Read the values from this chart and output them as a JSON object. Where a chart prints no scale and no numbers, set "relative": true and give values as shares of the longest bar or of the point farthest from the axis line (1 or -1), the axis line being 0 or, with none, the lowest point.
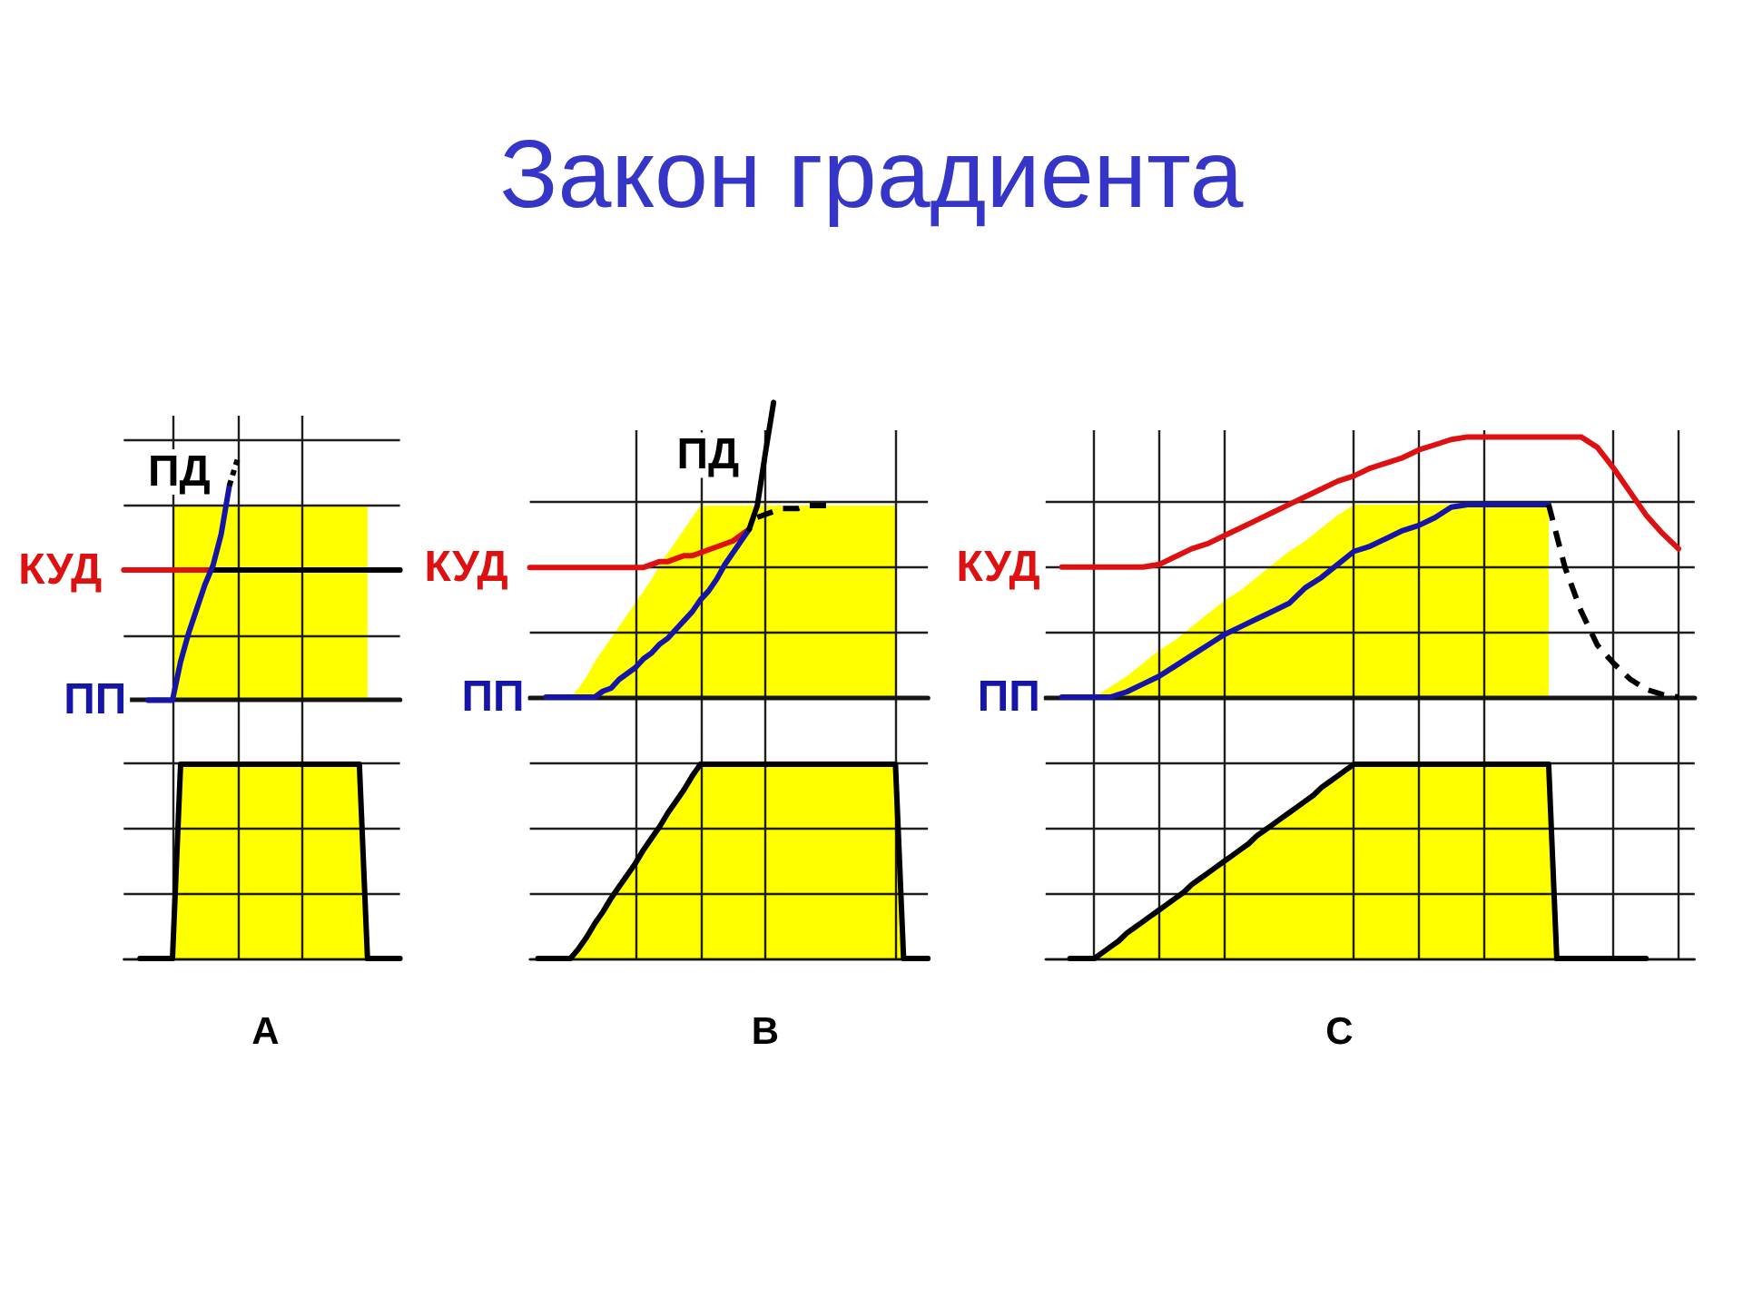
{
  "chart_data": [
    {
      "type": "line",
      "relative": true,
      "grid": true,
      "tick_labels": false,
      "categories": [
        null,
        null,
        null,
        null,
        null,
        null,
        null,
        null,
        null,
        null,
        null,
        null,
        null,
        null,
        null,
        null,
        null,
        null,
        null,
        null,
        null,
        null,
        null,
        null,
        null,
        null,
        null,
        null,
        null,
        null,
        null,
        null,
        null,
        null,
        null
      ],
      "series": [
        {
          "type": "area",
          "color": "#ffff00",
          "values": [
            null,
            null,
            null,
            null,
            null,
            null,
            0.81,
            0.81,
            0.81,
            0.81,
            0.81,
            0.81,
            0.81,
            0.81,
            0.81,
            0.81,
            0.81,
            0.81,
            0.81,
            0.81,
            0.81,
            0.81,
            0.81,
            0.81,
            0.81,
            0.81,
            0.81,
            0.81,
            0.81,
            0.81,
            0.81,
            null,
            null,
            null,
            null
          ]
        },
        {
          "type": "line",
          "name": "КУД",
          "color": "#dd1111",
          "values": [
            0.54,
            0.54,
            0.54,
            0.54,
            0.54,
            0.54,
            0.54,
            0.54,
            0.54,
            0.54,
            0.54,
            0.54,
            null,
            null,
            null,
            null,
            null,
            null,
            null,
            null,
            null,
            null,
            null,
            null,
            null,
            null,
            null,
            null,
            null,
            null,
            null,
            null,
            null,
            null,
            null
          ]
        },
        {
          "type": "line",
          "color": "#000000",
          "values": [
            null,
            null,
            null,
            null,
            null,
            null,
            null,
            null,
            null,
            null,
            null,
            0.54,
            0.54,
            0.54,
            0.54,
            0.54,
            0.54,
            0.54,
            0.54,
            0.54,
            0.54,
            0.54,
            0.54,
            0.54,
            0.54,
            0.54,
            0.54,
            0.54,
            0.54,
            0.54,
            0.54,
            0.54,
            0.54,
            0.54,
            0.54
          ]
        },
        {
          "type": "line",
          "name": "ПП",
          "color": "#1515a8",
          "values": [
            null,
            null,
            null,
            0,
            0,
            0,
            0,
            0.16,
            0.28,
            0.38,
            0.48,
            0.56,
            0.69,
            0.89,
            null,
            null,
            null,
            null,
            null,
            null,
            null,
            null,
            null,
            null,
            null,
            null,
            null,
            null,
            null,
            null,
            null,
            null,
            null,
            null,
            null
          ]
        },
        {
          "type": "line",
          "name": "ПД",
          "color": "#000000",
          "line_style": "dotted",
          "values": [
            null,
            null,
            null,
            null,
            null,
            null,
            null,
            null,
            null,
            null,
            null,
            null,
            null,
            0.89,
            1,
            null,
            null,
            null,
            null,
            null,
            null,
            null,
            null,
            null,
            null,
            null,
            null,
            null,
            null,
            null,
            null,
            null,
            null,
            null,
            null
          ]
        }
      ]
    },
    {
      "type": "line",
      "title": "Закон градиента",
      "relative": true,
      "grid": true,
      "tick_labels": false,
      "categories": [
        null,
        null,
        null,
        null,
        null,
        null,
        null,
        null,
        null,
        null,
        null,
        null,
        null,
        null,
        null,
        null,
        null,
        null,
        null,
        null,
        null,
        null,
        null,
        null,
        null,
        null,
        null,
        null,
        null,
        null,
        null,
        null,
        null,
        null,
        null,
        null,
        null,
        null,
        null,
        null,
        null,
        null,
        null,
        null,
        null,
        null,
        null,
        null,
        null,
        null
      ],
      "series": [
        {
          "type": "area",
          "color": "#ffff00",
          "values": [
            null,
            null,
            null,
            null,
            null,
            0,
            0.03,
            0.07,
            0.12,
            0.16,
            0.2,
            0.24,
            0.28,
            0.32,
            0.36,
            0.4,
            0.45,
            0.49,
            0.53,
            0.57,
            0.61,
            0.65,
            0.65,
            0.65,
            0.65,
            0.65,
            0.65,
            0.65,
            0.65,
            0.65,
            0.65,
            0.65,
            0.65,
            0.65,
            0.65,
            0.65,
            0.65,
            0.65,
            0.65,
            0.65,
            0.65,
            0.65,
            0.65,
            0.65,
            0.65,
            0.65,
            null,
            null,
            null,
            null
          ]
        },
        {
          "type": "line",
          "name": "КУД",
          "color": "#dd1111",
          "values": [
            0.44,
            0.44,
            0.44,
            0.44,
            0.44,
            0.44,
            0.44,
            0.44,
            0.44,
            0.44,
            0.44,
            0.44,
            0.44,
            0.44,
            0.44,
            0.45,
            0.46,
            0.46,
            0.47,
            0.48,
            0.48,
            0.49,
            0.5,
            0.51,
            0.52,
            0.53,
            0.55,
            0.57,
            null,
            null,
            null,
            null,
            null,
            null,
            null,
            null,
            null,
            null,
            null,
            null,
            null,
            null,
            null,
            null,
            null,
            null,
            null,
            null,
            null,
            null
          ]
        },
        {
          "type": "line",
          "name": "ПП",
          "color": "#1515a8",
          "values": [
            null,
            null,
            0,
            0,
            0,
            0,
            0,
            0,
            0,
            0.02,
            0.03,
            0.06,
            0.08,
            0.1,
            0.13,
            0.15,
            0.18,
            0.2,
            0.23,
            0.26,
            0.29,
            0.33,
            0.36,
            0.4,
            0.45,
            0.49,
            0.53,
            0.57,
            null,
            null,
            null,
            null,
            null,
            null,
            null,
            null,
            null,
            null,
            null,
            null,
            null,
            null,
            null,
            null,
            null,
            null,
            null,
            null,
            null,
            null
          ]
        },
        {
          "type": "line",
          "name": "ПД",
          "color": "#000000",
          "values": [
            null,
            null,
            null,
            null,
            null,
            null,
            null,
            null,
            null,
            null,
            null,
            null,
            null,
            null,
            null,
            null,
            null,
            null,
            null,
            null,
            null,
            null,
            null,
            null,
            null,
            null,
            null,
            0.57,
            0.65,
            0.83,
            1,
            null,
            null,
            null,
            null,
            null,
            null,
            null,
            null,
            null,
            null,
            null,
            null,
            null,
            null,
            null,
            null,
            null,
            null,
            null
          ]
        },
        {
          "type": "line",
          "color": "#000000",
          "line_style": "dashed",
          "values": [
            null,
            null,
            null,
            null,
            null,
            null,
            null,
            null,
            null,
            null,
            null,
            null,
            null,
            null,
            null,
            null,
            null,
            null,
            null,
            null,
            null,
            null,
            null,
            null,
            null,
            null,
            null,
            null,
            0.61,
            0.62,
            0.63,
            0.64,
            0.64,
            0.64,
            0.65,
            0.65,
            0.65,
            0.65,
            null,
            null,
            null,
            null,
            null,
            null,
            null,
            null,
            null,
            null,
            null,
            null
          ]
        }
      ]
    },
    {
      "type": "line",
      "relative": true,
      "grid": true,
      "tick_labels": false,
      "categories": [
        null,
        null,
        null,
        null,
        null,
        null,
        null,
        null,
        null,
        null,
        null,
        null,
        null,
        null,
        null,
        null,
        null,
        null,
        null,
        null,
        null,
        null,
        null,
        null,
        null,
        null,
        null,
        null,
        null,
        null,
        null,
        null,
        null,
        null,
        null,
        null,
        null,
        null,
        null,
        null,
        null
      ],
      "series": [
        {
          "type": "area",
          "color": "#ffff00",
          "values": [
            null,
            null,
            null,
            0,
            0.04,
            0.08,
            0.13,
            0.18,
            0.22,
            0.27,
            0.32,
            0.37,
            0.41,
            0.46,
            0.51,
            0.56,
            0.6,
            0.65,
            0.7,
            0.74,
            0.74,
            0.74,
            0.74,
            0.74,
            0.74,
            0.74,
            0.74,
            0.74,
            0.74,
            0.74,
            0.74,
            0.74,
            null,
            null,
            null,
            null,
            null,
            null,
            null,
            null,
            null
          ]
        },
        {
          "type": "line",
          "name": "КУД",
          "color": "#dd1111",
          "values": [
            null,
            0.5,
            0.5,
            0.5,
            0.5,
            0.5,
            0.5,
            0.51,
            0.54,
            0.57,
            0.59,
            0.62,
            0.65,
            0.68,
            0.71,
            0.74,
            0.77,
            0.8,
            0.83,
            0.85,
            0.88,
            0.9,
            0.92,
            0.95,
            0.97,
            0.99,
            1,
            1,
            1,
            1,
            1,
            1,
            1,
            1,
            0.96,
            0.88,
            0.79,
            0.7,
            0.63,
            0.57,
            null
          ]
        },
        {
          "type": "line",
          "name": "ПП",
          "color": "#1515a8",
          "values": [
            null,
            0,
            0,
            0,
            0,
            0.02,
            0.05,
            0.08,
            0.12,
            0.16,
            0.2,
            0.24,
            0.27,
            0.3,
            0.33,
            0.36,
            0.42,
            0.46,
            0.51,
            0.56,
            0.58,
            0.61,
            0.64,
            0.66,
            0.69,
            0.73,
            0.74,
            0.74,
            0.74,
            0.74,
            0.74,
            0.74,
            null,
            null,
            null,
            null,
            null,
            null,
            null,
            null,
            null
          ]
        },
        {
          "type": "line",
          "color": "#000000",
          "line_style": "dashed",
          "values": [
            null,
            null,
            null,
            null,
            null,
            null,
            null,
            null,
            null,
            null,
            null,
            null,
            null,
            null,
            null,
            null,
            null,
            null,
            null,
            null,
            null,
            null,
            null,
            null,
            null,
            null,
            null,
            null,
            null,
            null,
            null,
            0.74,
            0.5,
            0.33,
            0.2,
            0.13,
            0.07,
            0.03,
            0.01,
            0,
            null
          ]
        }
      ]
    },
    {
      "type": "line",
      "relative": true,
      "grid": true,
      "tick_labels": false,
      "xlabel": "A",
      "categories": [
        null,
        null,
        null,
        null,
        null,
        null,
        null,
        null,
        null,
        null,
        null,
        null,
        null,
        null,
        null,
        null,
        null,
        null,
        null,
        null,
        null,
        null,
        null,
        null,
        null,
        null,
        null,
        null,
        null,
        null,
        null,
        null,
        null,
        null,
        null
      ],
      "series": [
        {
          "type": "area",
          "color": "#ffff00",
          "values": [
            null,
            null,
            null,
            null,
            null,
            null,
            0,
            1,
            1,
            1,
            1,
            1,
            1,
            1,
            1,
            1,
            1,
            1,
            1,
            1,
            1,
            1,
            1,
            1,
            1,
            1,
            1,
            1,
            1,
            1,
            0,
            null,
            null,
            null,
            null
          ]
        },
        {
          "type": "line",
          "color": "#000000",
          "values": [
            null,
            null,
            0,
            0,
            0,
            0,
            0,
            1,
            1,
            1,
            1,
            1,
            1,
            1,
            1,
            1,
            1,
            1,
            1,
            1,
            1,
            1,
            1,
            1,
            1,
            1,
            1,
            1,
            1,
            1,
            0,
            0,
            0,
            0,
            0
          ]
        }
      ]
    },
    {
      "type": "line",
      "relative": true,
      "grid": true,
      "tick_labels": false,
      "xlabel": "B",
      "categories": [
        null,
        null,
        null,
        null,
        null,
        null,
        null,
        null,
        null,
        null,
        null,
        null,
        null,
        null,
        null,
        null,
        null,
        null,
        null,
        null,
        null,
        null,
        null,
        null,
        null,
        null,
        null,
        null,
        null,
        null,
        null,
        null,
        null,
        null,
        null,
        null,
        null,
        null,
        null,
        null,
        null,
        null,
        null,
        null,
        null,
        null,
        null,
        null,
        null,
        null
      ],
      "series": [
        {
          "type": "area",
          "color": "#ffff00",
          "values": [
            null,
            null,
            null,
            null,
            null,
            0,
            0.05,
            0.11,
            0.18,
            0.24,
            0.31,
            0.37,
            0.43,
            0.49,
            0.56,
            0.62,
            0.68,
            0.75,
            0.81,
            0.87,
            0.94,
            1,
            1,
            1,
            1,
            1,
            1,
            1,
            1,
            1,
            1,
            1,
            1,
            1,
            1,
            1,
            1,
            1,
            1,
            1,
            1,
            1,
            1,
            1,
            1,
            1,
            0,
            null,
            null,
            null
          ]
        },
        {
          "type": "line",
          "color": "#000000",
          "values": [
            null,
            0,
            0,
            0,
            0,
            0,
            0.05,
            0.11,
            0.18,
            0.24,
            0.31,
            0.37,
            0.43,
            0.49,
            0.56,
            0.62,
            0.68,
            0.75,
            0.81,
            0.87,
            0.94,
            1,
            1,
            1,
            1,
            1,
            1,
            1,
            1,
            1,
            1,
            1,
            1,
            1,
            1,
            1,
            1,
            1,
            1,
            1,
            1,
            1,
            1,
            1,
            1,
            1,
            0,
            0,
            0,
            0
          ]
        }
      ]
    },
    {
      "type": "line",
      "relative": true,
      "grid": true,
      "tick_labels": false,
      "xlabel": "C",
      "categories": [
        null,
        null,
        null,
        null,
        null,
        null,
        null,
        null,
        null,
        null,
        null,
        null,
        null,
        null,
        null,
        null,
        null,
        null,
        null,
        null,
        null,
        null,
        null,
        null,
        null,
        null,
        null,
        null,
        null,
        null,
        null,
        null,
        null,
        null,
        null,
        null,
        null,
        null,
        null,
        null,
        null,
        null,
        null,
        null,
        null,
        null,
        null,
        null,
        null,
        null,
        null,
        null,
        null,
        null,
        null,
        null,
        null,
        null,
        null,
        null,
        null,
        null,
        null,
        null,
        null,
        null,
        null,
        null,
        null,
        null,
        null,
        null,
        null,
        null,
        null,
        null,
        null,
        null,
        null,
        null,
        null
      ],
      "series": [
        {
          "type": "area",
          "color": "#ffff00",
          "values": [
            null,
            null,
            null,
            null,
            null,
            null,
            0,
            0.03,
            0.06,
            0.09,
            0.13,
            0.16,
            0.19,
            0.22,
            0.25,
            0.28,
            0.31,
            0.34,
            0.38,
            0.41,
            0.44,
            0.47,
            0.5,
            0.53,
            0.56,
            0.59,
            0.63,
            0.66,
            0.69,
            0.72,
            0.75,
            0.78,
            0.81,
            0.84,
            0.88,
            0.91,
            0.94,
            0.97,
            1,
            1,
            1,
            1,
            1,
            1,
            1,
            1,
            1,
            1,
            1,
            1,
            1,
            1,
            1,
            1,
            1,
            1,
            1,
            1,
            1,
            1,
            1,
            1,
            1,
            0,
            null,
            null,
            null,
            null,
            null,
            null,
            null,
            null,
            null,
            null,
            null,
            null,
            null,
            null,
            null,
            null,
            null
          ]
        },
        {
          "type": "line",
          "color": "#000000",
          "values": [
            null,
            null,
            null,
            0,
            0,
            0,
            0,
            0.03,
            0.06,
            0.09,
            0.13,
            0.16,
            0.19,
            0.22,
            0.25,
            0.28,
            0.31,
            0.34,
            0.38,
            0.41,
            0.44,
            0.47,
            0.5,
            0.53,
            0.56,
            0.59,
            0.63,
            0.66,
            0.69,
            0.72,
            0.75,
            0.78,
            0.81,
            0.84,
            0.88,
            0.91,
            0.94,
            0.97,
            1,
            1,
            1,
            1,
            1,
            1,
            1,
            1,
            1,
            1,
            1,
            1,
            1,
            1,
            1,
            1,
            1,
            1,
            1,
            1,
            1,
            1,
            1,
            1,
            1,
            0,
            0,
            0,
            0,
            0,
            0,
            0,
            0,
            0,
            0,
            0,
            0,
            null,
            null,
            null,
            null,
            null,
            null
          ]
        }
      ]
    }
  ]
}
